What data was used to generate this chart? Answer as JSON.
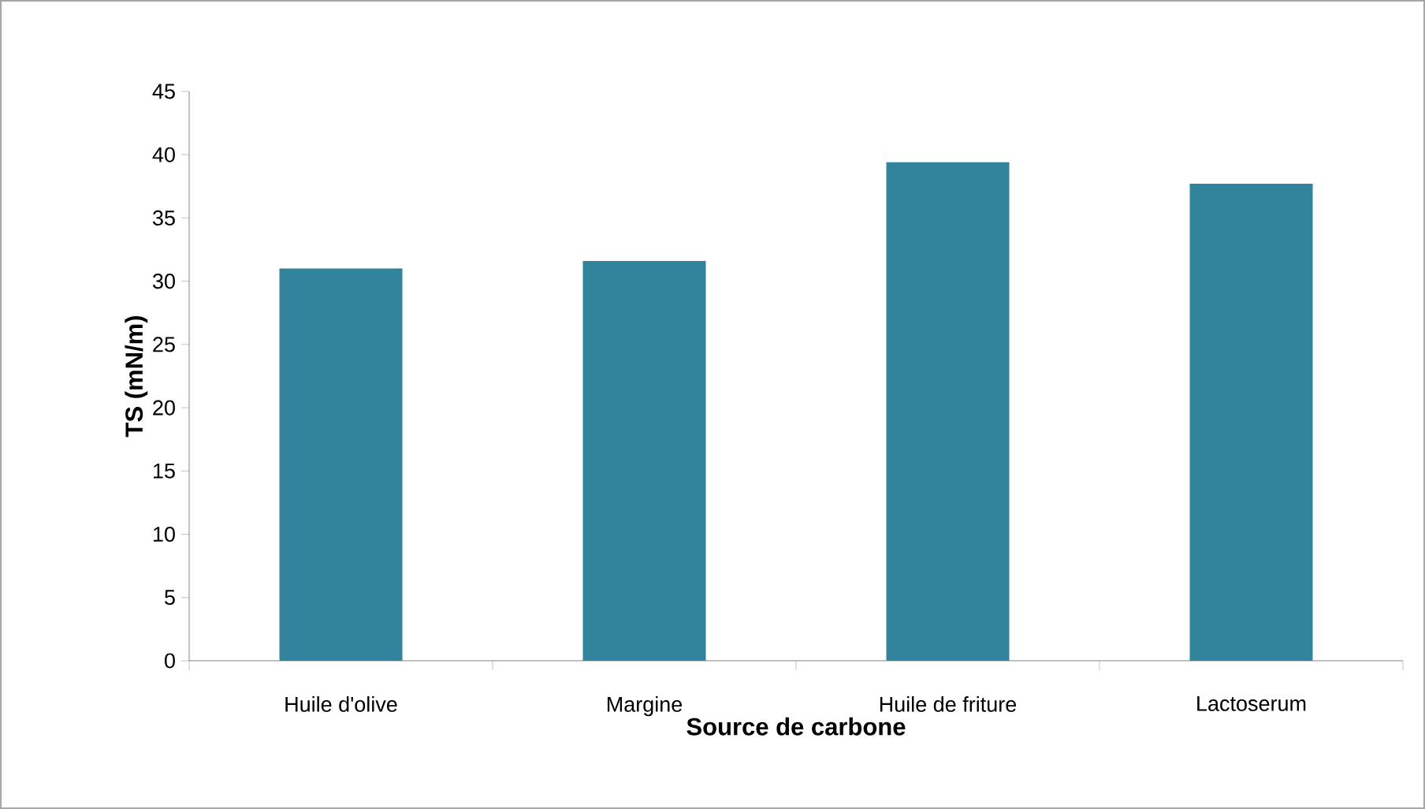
{
  "chart_data": {
    "type": "bar",
    "xlabel": "Source de carbone",
    "ylabel": "TS (mN/m)",
    "categories": [
      "Huile d'olive",
      "Margine",
      "Huile de friture",
      "Lactoserum"
    ],
    "values": [
      31.0,
      31.6,
      39.4,
      37.7
    ],
    "color": "#31849b",
    "ylim": [
      0,
      45
    ],
    "yticks": [
      0,
      5,
      10,
      15,
      20,
      25,
      30,
      35,
      40,
      45
    ]
  }
}
